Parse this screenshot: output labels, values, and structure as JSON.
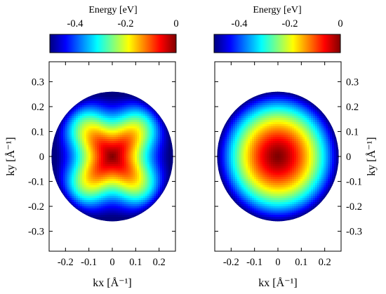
{
  "chart_data": [
    {
      "type": "heatmap",
      "panel": "left",
      "pattern": "anisotropic",
      "colormap": "jet",
      "colorbar": {
        "title": "Energy [eV]",
        "range": [
          -0.5,
          0
        ],
        "ticks": [
          -0.4,
          -0.2,
          0
        ],
        "tick_labels": [
          "-0.4",
          "-0.2",
          "0"
        ],
        "placement": "top"
      },
      "xlabel": "kx [Å⁻¹]",
      "ylabel": "ky [Å⁻¹]",
      "xlim": [
        -0.27,
        0.27
      ],
      "ylim": [
        -0.38,
        0.38
      ],
      "xticks": [
        -0.2,
        -0.1,
        0,
        0.1,
        0.2
      ],
      "xtick_labels": [
        "-0.2",
        "-0.1",
        "0",
        "0.1",
        "0.2"
      ],
      "yticks": [
        -0.3,
        -0.2,
        -0.1,
        0,
        0.1,
        0.2,
        0.3
      ],
      "ytick_labels": [
        "-0.3",
        "-0.2",
        "-0.1",
        "0",
        "0.1",
        "0.2",
        "0.3"
      ],
      "ylabel_side": "left",
      "domain_radius": 0.26,
      "energy_min": -0.5,
      "energy_max": 0,
      "grid": false
    },
    {
      "type": "heatmap",
      "panel": "right",
      "pattern": "isotropic",
      "colormap": "jet",
      "colorbar": {
        "title": "Energy [eV]",
        "range": [
          -0.5,
          0
        ],
        "ticks": [
          -0.4,
          -0.2,
          0
        ],
        "tick_labels": [
          "-0.4",
          "-0.2",
          "0"
        ],
        "placement": "top"
      },
      "xlabel": "kx [Å⁻¹]",
      "ylabel": "ky [Å⁻¹]",
      "xlim": [
        -0.27,
        0.27
      ],
      "ylim": [
        -0.38,
        0.38
      ],
      "xticks": [
        -0.2,
        -0.1,
        0,
        0.1,
        0.2
      ],
      "xtick_labels": [
        "-0.2",
        "-0.1",
        "0",
        "0.1",
        "0.2"
      ],
      "yticks": [
        -0.3,
        -0.2,
        -0.1,
        0,
        0.1,
        0.2,
        0.3
      ],
      "ytick_labels": [
        "-0.3",
        "-0.2",
        "-0.1",
        "0",
        "0.1",
        "0.2",
        "0.3"
      ],
      "ylabel_side": "right",
      "domain_radius": 0.26,
      "energy_min": -0.5,
      "energy_max": 0,
      "grid": false
    }
  ]
}
